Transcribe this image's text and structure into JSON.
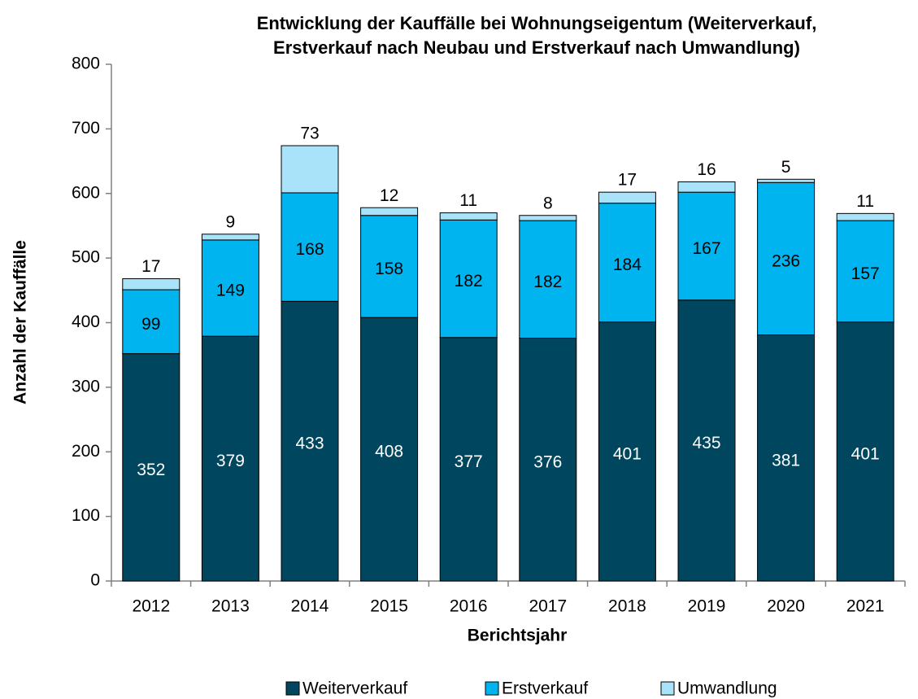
{
  "chart_data": {
    "type": "stacked_bar",
    "title": [
      "Entwicklung der Kauffälle bei Wohnungseigentum (Weiterverkauf,",
      "Erstverkauf nach Neubau und Erstverkauf nach Umwandlung)"
    ],
    "x_label": "Berichtsjahr",
    "y_label": "Anzahl der Kauffälle",
    "categories": [
      "2012",
      "2013",
      "2014",
      "2015",
      "2016",
      "2017",
      "2018",
      "2019",
      "2020",
      "2021"
    ],
    "series": [
      {
        "name": "Weiterverkauf",
        "color": "#00465e",
        "label_color": "#ffffff",
        "values": [
          352,
          379,
          433,
          408,
          377,
          376,
          401,
          435,
          381,
          401
        ]
      },
      {
        "name": "Erstverkauf",
        "color": "#00b4f0",
        "label_color": "#000000",
        "values": [
          99,
          149,
          168,
          158,
          182,
          182,
          184,
          167,
          236,
          157
        ]
      },
      {
        "name": "Umwandlung",
        "color": "#a8e3f9",
        "label_color": "#000000",
        "values": [
          17,
          9,
          73,
          12,
          11,
          8,
          17,
          16,
          5,
          11
        ]
      }
    ],
    "ylim": [
      0,
      800
    ],
    "yticks": [
      0,
      100,
      200,
      300,
      400,
      500,
      600,
      700,
      800
    ],
    "legend": "bottom"
  }
}
